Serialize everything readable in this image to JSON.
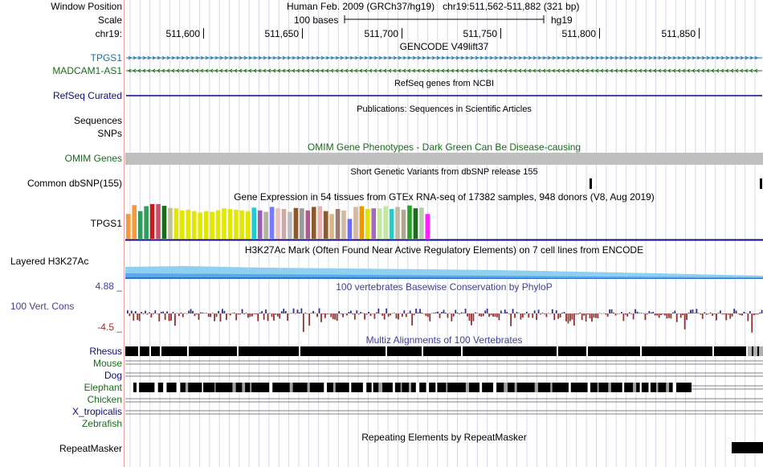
{
  "header": {
    "window_position_label": "Window Position",
    "scale_label": "Scale",
    "chrom_label": "chr19:",
    "assembly": "Human Feb. 2009 (GRCh37/hg19)",
    "position": "chr19:511,562-511,882 (321 bp)",
    "scale_text": "100 bases",
    "db": "hg19",
    "ticks": [
      "511,600",
      "511,650",
      "511,700",
      "511,750",
      "511,800",
      "511,850"
    ]
  },
  "tracks": {
    "gencode": {
      "title": "GENCODE V49lift37",
      "genes": [
        "TPGS1",
        "MADCAM1-AS1"
      ],
      "colors": [
        "#1b6fa8",
        "#1a6b1a"
      ]
    },
    "refseq": {
      "title": "RefSeq genes from NCBI",
      "label": "RefSeq Curated",
      "color": "#0c0c78"
    },
    "publications": {
      "title": "Publications: Sequences in Scientific Articles",
      "labels": [
        "Sequences",
        "SNPs"
      ]
    },
    "omim": {
      "title": "OMIM Gene Phenotypes - Dark Green Can Be Disease-causing",
      "label": "OMIM Genes",
      "color": "#1a6b1a"
    },
    "dbsnp": {
      "title": "Short Genetic Variants from dbSNP release 155",
      "label": "Common dbSNP(155)"
    },
    "gtex": {
      "title": "Gene Expression in 54 tissues from GTEx RNA-seq of 17382 samples, 948 donors (V8, Aug 2019)",
      "label": "TPGS1",
      "bar_colors": [
        "#f49a3a",
        "#f49a3a",
        "#2f9e5a",
        "#2f9e5a",
        "#cc1a1a",
        "#c4506a",
        "#1a6b1a",
        "#bfbf9b",
        "#e3e600",
        "#e3e600",
        "#e3e600",
        "#e3e600",
        "#e3e600",
        "#e3e600",
        "#e3e600",
        "#e3e600",
        "#e3e600",
        "#e3e600",
        "#e3e600",
        "#e3e600",
        "#e3e600",
        "#22cccc",
        "#9a5ab7",
        "#b2b2a0",
        "#7a7aff",
        "#e8c0c0",
        "#cca8a8",
        "#bdbdbd",
        "#8b5a2b",
        "#9a9a9a",
        "#b05b8c",
        "#8b5a2b",
        "#e8b0b0",
        "#8b5a2b",
        "#d8b888",
        "#9c7a6c",
        "#d4b8a0",
        "#6b6bff",
        "#d4b8a0",
        "#e89a00",
        "#e8e000",
        "#a868c0",
        "#c4e8a0",
        "#c4e8a0",
        "#22cccc",
        "#c4b8a0",
        "#b0a890",
        "#2aa02a",
        "#1a6b1a",
        "#b8ccb0",
        "#ff22ff"
      ],
      "bar_heights": [
        0.7,
        0.95,
        0.78,
        0.92,
        0.98,
        0.98,
        0.93,
        0.87,
        0.86,
        0.8,
        0.82,
        0.78,
        0.74,
        0.78,
        0.76,
        0.8,
        0.86,
        0.84,
        0.82,
        0.8,
        0.78,
        0.88,
        0.8,
        0.76,
        0.9,
        0.86,
        0.84,
        0.76,
        0.87,
        0.86,
        0.8,
        0.9,
        0.92,
        0.78,
        0.7,
        0.84,
        0.8,
        0.56,
        0.9,
        0.92,
        0.84,
        0.86,
        0.86,
        0.92,
        0.84,
        0.9,
        0.82,
        0.94,
        0.86,
        0.88,
        0.7
      ]
    },
    "h3k27ac": {
      "title": "H3K27Ac Mark (Often Found Near Active Regulatory Elements) on 7 cell lines from ENCODE",
      "label": "Layered H3K27Ac"
    },
    "conservation": {
      "title": "100 vertebrates Basewise Conservation by PhyloP",
      "label": "100 Vert. Cons",
      "max_label": "4.88 _",
      "min_label": "-4.5 _",
      "colors": {
        "pos": "#303090",
        "neg": "#903030",
        "title": "#40409a"
      }
    },
    "multiz": {
      "title": "Multiz Alignments of 100 Vertebrates",
      "species": [
        "Rhesus",
        "Mouse",
        "Dog",
        "Elephant",
        "Chicken",
        "X_tropicalis",
        "Zebrafish"
      ],
      "species_colors": [
        "#0c0c78",
        "#1a6b1a",
        "#0c0c78",
        "#1a6b1a",
        "#1a6b1a",
        "#0c0c78",
        "#1a6b1a"
      ]
    },
    "repeatmasker": {
      "title": "Repeating Elements by RepeatMasker",
      "label": "RepeatMasker"
    }
  }
}
